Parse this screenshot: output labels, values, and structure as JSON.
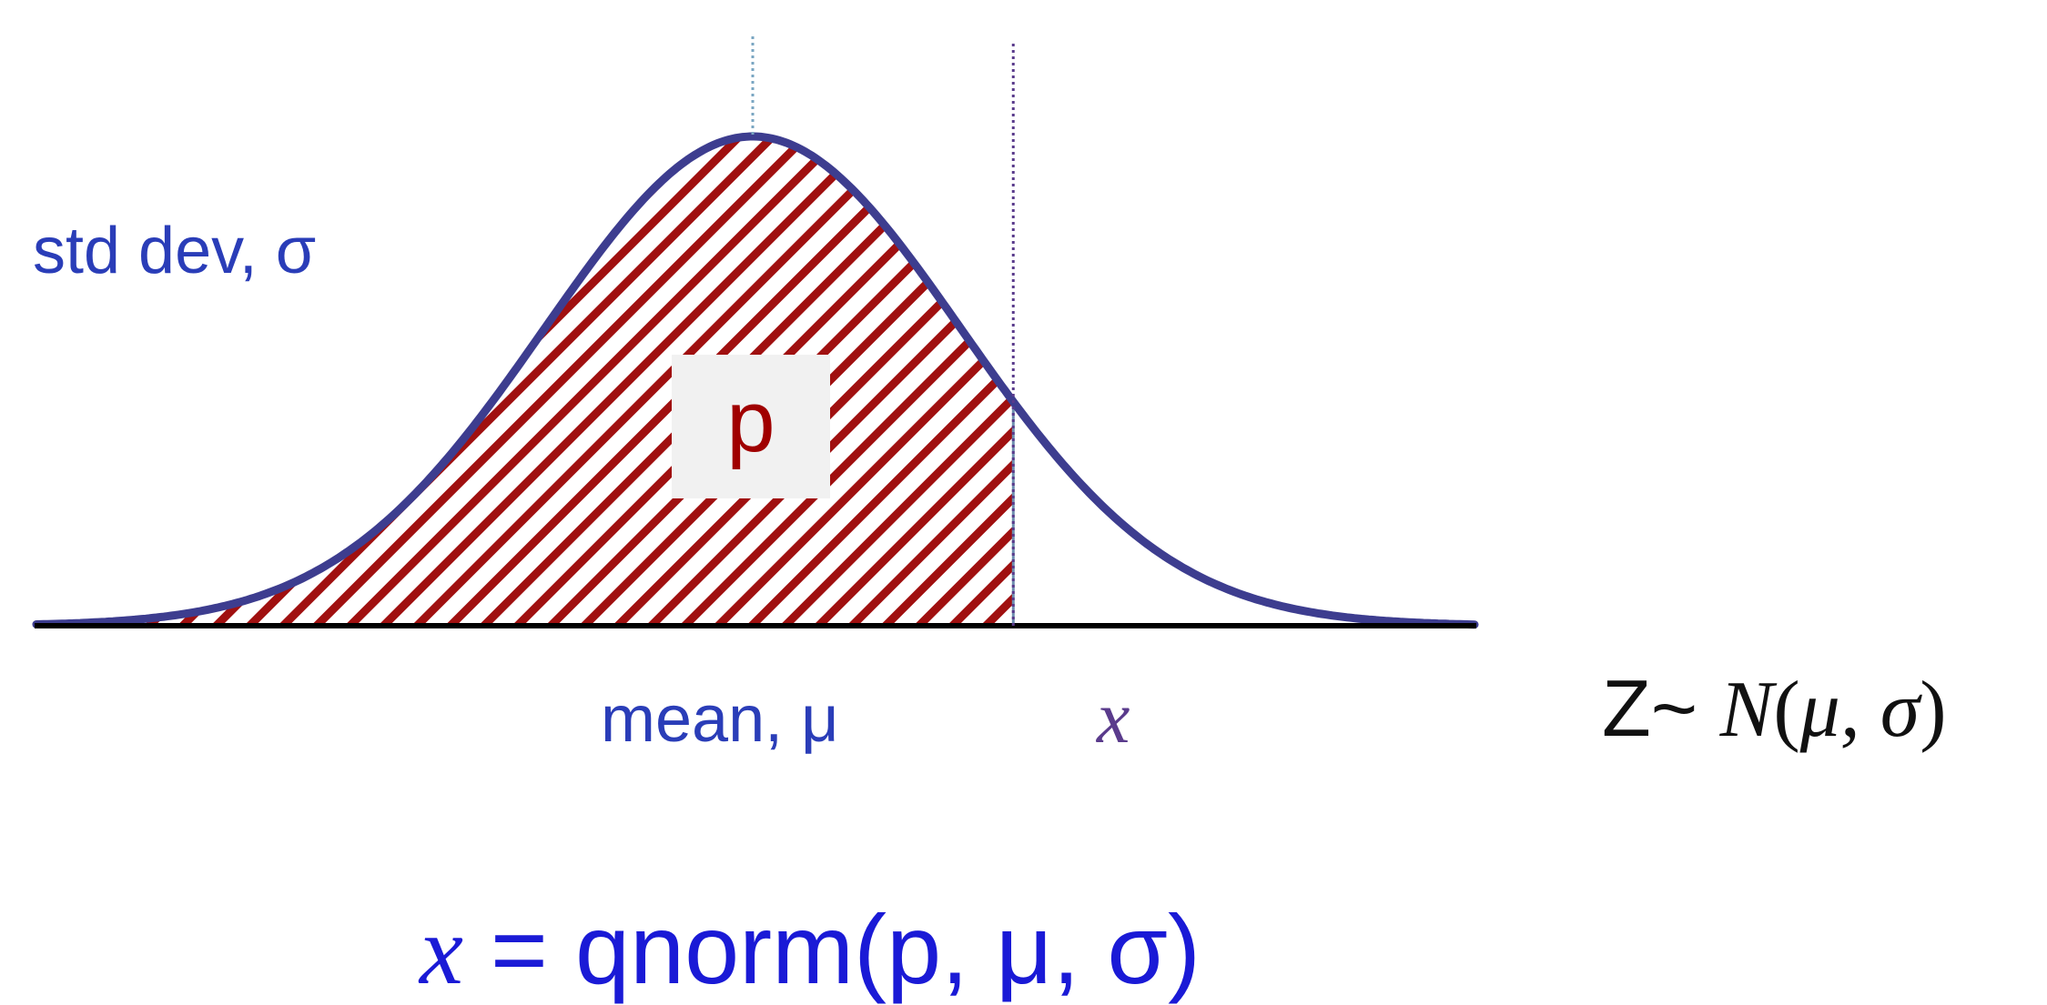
{
  "labels": {
    "std_dev": "std dev, σ",
    "mean": "mean, μ",
    "x_marker": "x",
    "area": "p"
  },
  "distribution": {
    "prefix": "Z~",
    "name": "N",
    "params": "μ, σ",
    "open_paren": "(",
    "close_paren": ")"
  },
  "formula": {
    "var": "x",
    "rest": " = qnorm(p, μ, σ)"
  },
  "colors": {
    "curve": "#3d3d8f",
    "hatch": "#a01010",
    "label_blue": "#2a3db8",
    "formula_blue": "#1a1ad6",
    "x_marker": "#5a3b8c",
    "mean_line": "#7aa6c2",
    "axis": "#000000"
  },
  "chart_data": {
    "type": "area",
    "curve": "normal density",
    "shaded_region": "left tail up to x (probability p)",
    "x_marker_z": 1.25,
    "mean_marker_z": 0
  }
}
